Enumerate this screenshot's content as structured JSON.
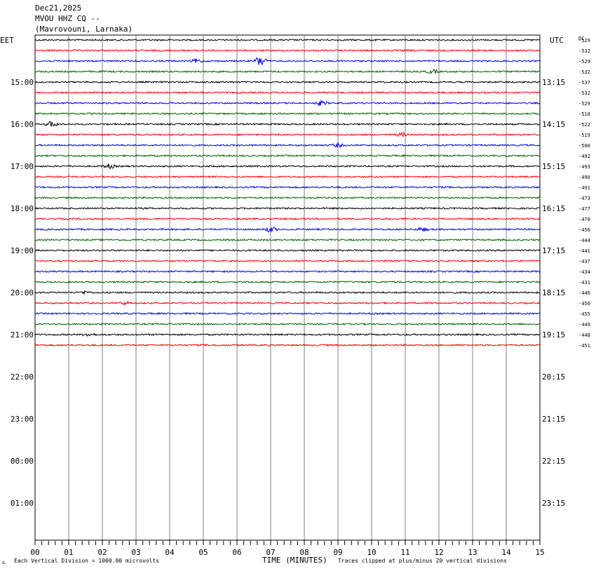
{
  "header": {
    "date": "Dec21,2025",
    "channel": "MVOU HHZ CQ --",
    "location": "(Mavrovouni, Larnaka)"
  },
  "left_axis_label": "EET",
  "right_axis_label": "UTC",
  "dc_label": "DC",
  "footer": {
    "division_note": "Each Vertical Division = 1000.00 microvolts",
    "xlabel": "TIME (MINUTES)",
    "clip_note": "Traces clipped at plus/minus 20 vertical divisions",
    "corner_mark": "JL"
  },
  "colors": {
    "trace_cycle": [
      "#000000",
      "#ff0000",
      "#0000ff",
      "#006400"
    ],
    "grid": "#808080"
  },
  "chart_data": {
    "type": "line",
    "title": "MVOU HHZ CQ -- (Mavrovouni, Larnaka)",
    "xlabel": "TIME (MINUTES)",
    "ylabel": "",
    "xlim": [
      0,
      15
    ],
    "x_ticks": [
      "00",
      "01",
      "02",
      "03",
      "04",
      "05",
      "06",
      "07",
      "08",
      "09",
      "10",
      "11",
      "12",
      "13",
      "14",
      "15"
    ],
    "rows_per_hour": 4,
    "first_row_hour_eet": "14:00",
    "left_hour_labels": [
      "15:00",
      "16:00",
      "17:00",
      "18:00",
      "19:00",
      "20:00",
      "21:00",
      "22:00",
      "23:00",
      "00:00",
      "01:00"
    ],
    "right_hour_labels": [
      "13:15",
      "14:15",
      "15:15",
      "16:15",
      "17:15",
      "18:15",
      "19:15",
      "20:15",
      "21:15",
      "22:15",
      "23:15"
    ],
    "dc_offsets": [
      -529,
      -532,
      -529,
      -532,
      -537,
      -532,
      -529,
      -518,
      -522,
      -519,
      -500,
      -492,
      -493,
      -490,
      -491,
      -473,
      -477,
      -470,
      -456,
      -444,
      -441,
      -437,
      -434,
      -431,
      -446,
      -450,
      -455,
      -449,
      -448,
      -451
    ],
    "events": [
      {
        "row": 2,
        "minute": 6.7,
        "amp": 8
      },
      {
        "row": 2,
        "minute": 4.8,
        "amp": 2.5
      },
      {
        "row": 3,
        "minute": 11.8,
        "amp": 3
      },
      {
        "row": 6,
        "minute": 8.5,
        "amp": 3
      },
      {
        "row": 8,
        "minute": 0.5,
        "amp": 4
      },
      {
        "row": 9,
        "minute": 10.9,
        "amp": 2.5
      },
      {
        "row": 10,
        "minute": 9.0,
        "amp": 2.5
      },
      {
        "row": 12,
        "minute": 2.2,
        "amp": 3
      },
      {
        "row": 18,
        "minute": 7.0,
        "amp": 4
      },
      {
        "row": 18,
        "minute": 11.5,
        "amp": 2.5
      },
      {
        "row": 24,
        "minute": 1.5,
        "amp": 2
      },
      {
        "row": 25,
        "minute": 2.7,
        "amp": 2
      },
      {
        "row": 28,
        "minute": 1.6,
        "amp": 2.5
      }
    ]
  }
}
